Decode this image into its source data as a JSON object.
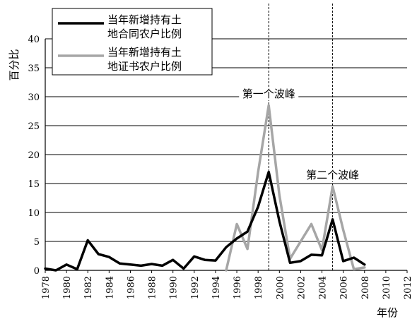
{
  "chart_data": {
    "type": "line",
    "ylabel": "百分比",
    "xlabel": "年份",
    "x_ticks": [
      "1978",
      "1980",
      "1982",
      "1984",
      "1986",
      "1988",
      "1990",
      "1992",
      "1994",
      "1996",
      "1998",
      "2000",
      "2002",
      "2004",
      "2006",
      "2008",
      "2010",
      "2012"
    ],
    "y_ticks": [
      "0",
      "5",
      "10",
      "15",
      "20",
      "25",
      "30",
      "35",
      "40"
    ],
    "xlim": [
      1978,
      2012
    ],
    "ylim": [
      0,
      40
    ],
    "grid": "horizontal",
    "legend_position": "top-left",
    "series": [
      {
        "name": "当年新增持有土地合同农户比例",
        "color": "#000000",
        "x": [
          1978,
          1979,
          1980,
          1981,
          1982,
          1983,
          1984,
          1985,
          1986,
          1987,
          1988,
          1989,
          1990,
          1991,
          1992,
          1993,
          1994,
          1995,
          1996,
          1997,
          1998,
          1999,
          2000,
          2001,
          2002,
          2003,
          2004,
          2005,
          2006,
          2007,
          2008
        ],
        "y": [
          0.3,
          0,
          1,
          0.2,
          5.2,
          2.8,
          2.3,
          1.2,
          1,
          0.8,
          1.1,
          0.8,
          1.8,
          0.3,
          2.4,
          1.8,
          1.7,
          4,
          5.5,
          6.7,
          11,
          17,
          8.5,
          1.3,
          1.6,
          2.7,
          2.6,
          8.8,
          1.6,
          2.2,
          1
        ]
      },
      {
        "name": "当年新增持有土地证书农户比例",
        "color": "#a6a6a6",
        "x": [
          1995,
          1996,
          1997,
          1998,
          1999,
          2000,
          2001,
          2002,
          2003,
          2004,
          2005,
          2006,
          2007,
          2008
        ],
        "y": [
          0,
          8,
          3.7,
          17,
          28.5,
          13,
          2,
          5,
          8,
          3.5,
          14.5,
          7,
          0.2,
          0.5
        ]
      }
    ],
    "annotations": [
      {
        "text": "第一个波峰",
        "x": 1999
      },
      {
        "text": "第二个波峰",
        "x": 2005
      }
    ]
  }
}
